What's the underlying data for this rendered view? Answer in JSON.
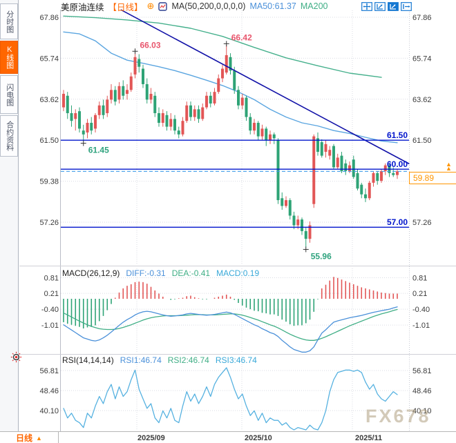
{
  "window": {
    "watermark": "FX678"
  },
  "sidebar": {
    "items": [
      {
        "name": "timeline",
        "label": "分时图",
        "active": false
      },
      {
        "name": "kline",
        "label": "K线图",
        "active": true
      },
      {
        "name": "lightning",
        "label": "闪电图",
        "active": false
      },
      {
        "name": "contract-info",
        "label": "合约资料",
        "active": false
      }
    ]
  },
  "header": {
    "symbol": "美原油连续",
    "period_tag": "【日线】",
    "circle_plus": "⊕",
    "ma_settings": "MA(50,200,0,0,0,0)",
    "ma50_label": "MA50:61.37",
    "ma200_label": "MA200"
  },
  "toolbar": {
    "icons": [
      {
        "name": "pan-tool-icon"
      },
      {
        "name": "axis-zoom-icon"
      },
      {
        "name": "axis-scale-icon"
      },
      {
        "name": "exit-chart-icon"
      }
    ]
  },
  "bottom": {
    "tab_label": "日线",
    "tab_arrow": "▲",
    "x_labels": [
      "2025/09",
      "2025/10",
      "2025/11"
    ]
  },
  "colors": {
    "up": "#e25656",
    "down": "#2ea376",
    "ma50": "#5aa5e0",
    "ma200": "#45b08c",
    "trend": "#1212a8",
    "hline": "#0014cc",
    "dashed": "#3d9be9",
    "orange": "#ff9500",
    "accent_orange": "#ff6600",
    "annotation_red": "#e8566d",
    "annotation_green": "#2fa37e",
    "diff": "#4a90d9",
    "dea": "#3fae85",
    "macd_text": "#38a8d8",
    "rsi_line": "#55b1e0",
    "icon_blue": "#1678d2"
  },
  "chart_data": [
    {
      "type": "candlestick",
      "symbol": "美原油连续",
      "period": "日线",
      "y_axis_labels": [
        "67.86",
        "65.74",
        "63.62",
        "61.50",
        "59.38",
        "57.26"
      ],
      "y_axis_values": [
        67.86,
        65.74,
        63.62,
        61.5,
        59.38,
        57.26
      ],
      "x_axis_labels": [
        "2025/09",
        "2025/10",
        "2025/11"
      ],
      "candles": [
        [
          63.2,
          64.1,
          63.0,
          63.9
        ],
        [
          63.8,
          64.0,
          62.6,
          62.9
        ],
        [
          62.9,
          63.3,
          62.2,
          62.5
        ],
        [
          62.6,
          63.1,
          62.0,
          62.9
        ],
        [
          63.0,
          63.2,
          61.9,
          62.1
        ],
        [
          62.0,
          62.3,
          61.45,
          61.8
        ],
        [
          61.9,
          62.6,
          61.6,
          62.4
        ],
        [
          62.4,
          62.7,
          61.8,
          62.0
        ],
        [
          62.1,
          62.9,
          61.9,
          62.8
        ],
        [
          62.8,
          63.5,
          62.6,
          63.3
        ],
        [
          63.3,
          63.6,
          62.6,
          62.8
        ],
        [
          62.9,
          63.8,
          62.7,
          63.6
        ],
        [
          63.6,
          64.4,
          63.4,
          64.1
        ],
        [
          64.1,
          64.3,
          63.3,
          63.5
        ],
        [
          63.6,
          64.5,
          63.4,
          64.3
        ],
        [
          64.3,
          64.6,
          63.6,
          63.8
        ],
        [
          63.9,
          64.4,
          63.6,
          64.1
        ],
        [
          64.1,
          65.0,
          64.0,
          64.8
        ],
        [
          64.9,
          66.03,
          64.7,
          65.8
        ],
        [
          65.7,
          65.95,
          65.0,
          65.3
        ],
        [
          65.2,
          65.4,
          64.2,
          64.4
        ],
        [
          64.4,
          64.7,
          63.4,
          63.6
        ],
        [
          63.6,
          64.2,
          63.4,
          63.9
        ],
        [
          63.8,
          64.0,
          62.7,
          62.9
        ],
        [
          62.9,
          63.2,
          62.2,
          62.4
        ],
        [
          62.4,
          63.1,
          62.2,
          62.9
        ],
        [
          62.8,
          63.0,
          62.0,
          62.2
        ],
        [
          62.2,
          62.9,
          62.0,
          62.6
        ],
        [
          62.6,
          62.8,
          61.8,
          62.0
        ],
        [
          62.0,
          62.2,
          61.6,
          61.8
        ],
        [
          61.8,
          62.7,
          61.7,
          62.5
        ],
        [
          62.5,
          63.5,
          62.4,
          63.3
        ],
        [
          63.3,
          63.5,
          62.5,
          62.7
        ],
        [
          62.7,
          63.3,
          62.5,
          63.1
        ],
        [
          63.1,
          63.3,
          62.4,
          62.6
        ],
        [
          62.6,
          63.4,
          62.5,
          63.2
        ],
        [
          63.2,
          64.0,
          63.1,
          63.8
        ],
        [
          63.8,
          64.0,
          63.2,
          63.4
        ],
        [
          63.4,
          64.2,
          63.3,
          64.0
        ],
        [
          64.0,
          64.9,
          63.9,
          64.7
        ],
        [
          64.7,
          65.4,
          64.5,
          65.2
        ],
        [
          65.0,
          66.42,
          64.9,
          65.9
        ],
        [
          65.8,
          66.0,
          64.9,
          65.1
        ],
        [
          65.1,
          65.3,
          63.9,
          64.1
        ],
        [
          64.1,
          64.3,
          63.1,
          63.3
        ],
        [
          63.3,
          63.9,
          63.1,
          63.7
        ],
        [
          63.7,
          63.8,
          62.5,
          62.7
        ],
        [
          62.7,
          62.9,
          61.8,
          62.0
        ],
        [
          62.0,
          62.6,
          61.8,
          62.4
        ],
        [
          62.4,
          62.5,
          61.5,
          61.7
        ],
        [
          61.7,
          62.3,
          61.5,
          62.1
        ],
        [
          62.1,
          62.2,
          61.2,
          61.5
        ],
        [
          61.5,
          62.0,
          61.3,
          61.8
        ],
        [
          61.8,
          61.9,
          61.3,
          61.6
        ],
        [
          61.5,
          61.6,
          58.2,
          58.4
        ],
        [
          58.5,
          58.8,
          57.9,
          58.1
        ],
        [
          58.1,
          58.6,
          58.0,
          58.4
        ],
        [
          58.4,
          58.5,
          57.4,
          57.6
        ],
        [
          57.6,
          57.8,
          56.9,
          57.1
        ],
        [
          57.1,
          57.6,
          56.9,
          57.4
        ],
        [
          57.4,
          57.5,
          56.6,
          56.8
        ],
        [
          56.8,
          57.0,
          55.96,
          56.4
        ],
        [
          56.4,
          57.3,
          56.2,
          57.1
        ],
        [
          58.2,
          61.8,
          58.0,
          61.7
        ],
        [
          61.6,
          61.9,
          60.7,
          60.9
        ],
        [
          61.4,
          61.55,
          60.6,
          60.7
        ],
        [
          60.9,
          61.5,
          60.6,
          61.3
        ],
        [
          60.7,
          61.2,
          60.5,
          61.0
        ],
        [
          61.2,
          61.3,
          60.0,
          60.1
        ],
        [
          60.1,
          60.8,
          60.0,
          60.6
        ],
        [
          60.7,
          60.9,
          59.8,
          59.9
        ],
        [
          60.3,
          60.5,
          59.7,
          59.9
        ],
        [
          59.9,
          60.4,
          59.8,
          60.2
        ],
        [
          60.5,
          60.7,
          59.5,
          59.6
        ],
        [
          59.8,
          60.0,
          58.9,
          59.0
        ],
        [
          59.2,
          59.3,
          58.5,
          58.7
        ],
        [
          58.7,
          59.0,
          58.3,
          58.5
        ],
        [
          58.5,
          59.4,
          58.4,
          59.3
        ],
        [
          59.3,
          59.9,
          59.1,
          59.8
        ],
        [
          59.8,
          59.9,
          59.2,
          59.4
        ],
        [
          59.4,
          60.0,
          59.3,
          59.9
        ],
        [
          59.9,
          60.3,
          59.7,
          60.2
        ],
        [
          60.2,
          60.3,
          59.6,
          59.8
        ],
        [
          59.8,
          60.1,
          59.6,
          59.7
        ],
        [
          59.7,
          60.0,
          59.5,
          59.89
        ]
      ],
      "ma50_points": [
        [
          0,
          67.1
        ],
        [
          4,
          67.0
        ],
        [
          8,
          66.64
        ],
        [
          12,
          66.0
        ],
        [
          16,
          65.64
        ],
        [
          20,
          65.48
        ],
        [
          24,
          65.3
        ],
        [
          28,
          65.1
        ],
        [
          32,
          64.86
        ],
        [
          36,
          64.6
        ],
        [
          40,
          64.33
        ],
        [
          44,
          64.0
        ],
        [
          48,
          63.6
        ],
        [
          52,
          63.1
        ],
        [
          56,
          62.7
        ],
        [
          60,
          62.4
        ],
        [
          64,
          62.24
        ],
        [
          68,
          62.0
        ],
        [
          72,
          61.85
        ],
        [
          76,
          61.65
        ],
        [
          80,
          61.46
        ],
        [
          84,
          61.37
        ]
      ],
      "ma200_points": [
        [
          0,
          67.92
        ],
        [
          8,
          67.84
        ],
        [
          16,
          67.72
        ],
        [
          24,
          67.56
        ],
        [
          32,
          67.29
        ],
        [
          40,
          66.87
        ],
        [
          48,
          66.3
        ],
        [
          56,
          65.76
        ],
        [
          64,
          65.35
        ],
        [
          72,
          64.97
        ],
        [
          80,
          64.75
        ]
      ],
      "trendline": {
        "from": [
          14.4,
          68.25
        ],
        "to": [
          87,
          60.28
        ]
      },
      "h_lines": [
        {
          "price": 61.5,
          "label": "61.50"
        },
        {
          "price": 60.0,
          "label": "60.00"
        },
        {
          "price": 57.0,
          "label": "57.00"
        }
      ],
      "current_price": {
        "label": "59.89",
        "value": 59.89
      },
      "annotations": [
        {
          "text": "66.03",
          "index": 18,
          "price": 66.03,
          "type": "high"
        },
        {
          "text": "66.42",
          "index": 41,
          "price": 66.42,
          "type": "high"
        },
        {
          "text": "61.45",
          "index": 5,
          "price": 61.45,
          "type": "low"
        },
        {
          "text": "55.96",
          "index": 61,
          "price": 55.96,
          "type": "low"
        }
      ]
    },
    {
      "type": "macd",
      "label": "MACD(26,12,9)",
      "diff_label": "DIFF:-0.31",
      "dea_label": "DEA:-0.41",
      "macd_label": "MACD:0.19",
      "y_axis_labels": [
        "0.81",
        "0.21",
        "-0.40",
        "-1.01"
      ],
      "y_axis_values": [
        0.81,
        0.21,
        -0.4,
        -1.01
      ],
      "diff": [
        -1.0,
        -1.1,
        -1.2,
        -1.3,
        -1.4,
        -1.5,
        -1.55,
        -1.6,
        -1.62,
        -1.58,
        -1.5,
        -1.4,
        -1.28,
        -1.15,
        -1.02,
        -0.9,
        -0.8,
        -0.72,
        -0.62,
        -0.55,
        -0.5,
        -0.48,
        -0.5,
        -0.54,
        -0.58,
        -0.62,
        -0.65,
        -0.67,
        -0.66,
        -0.64,
        -0.62,
        -0.58,
        -0.56,
        -0.58,
        -0.6,
        -0.62,
        -0.63,
        -0.62,
        -0.6,
        -0.57,
        -0.54,
        -0.51,
        -0.54,
        -0.6,
        -0.68,
        -0.76,
        -0.84,
        -0.92,
        -1.0,
        -1.06,
        -1.15,
        -1.22,
        -1.3,
        -1.35,
        -1.45,
        -1.6,
        -1.72,
        -1.85,
        -1.95,
        -2.0,
        -2.05,
        -2.05,
        -2.0,
        -1.85,
        -1.58,
        -1.32,
        -1.19,
        -1.04,
        -0.9,
        -0.85,
        -0.81,
        -0.77,
        -0.73,
        -0.7,
        -0.67,
        -0.64,
        -0.6,
        -0.56,
        -0.52,
        -0.49,
        -0.46,
        -0.43,
        -0.4,
        -0.35,
        -0.31
      ],
      "dea": [
        -0.55,
        -0.62,
        -0.7,
        -0.78,
        -0.86,
        -0.93,
        -1.0,
        -1.06,
        -1.11,
        -1.15,
        -1.17,
        -1.18,
        -1.18,
        -1.17,
        -1.14,
        -1.1,
        -1.05,
        -1.0,
        -0.94,
        -0.88,
        -0.82,
        -0.77,
        -0.73,
        -0.7,
        -0.68,
        -0.66,
        -0.65,
        -0.65,
        -0.65,
        -0.65,
        -0.64,
        -0.63,
        -0.62,
        -0.61,
        -0.61,
        -0.61,
        -0.62,
        -0.62,
        -0.62,
        -0.61,
        -0.6,
        -0.59,
        -0.58,
        -0.58,
        -0.6,
        -0.63,
        -0.67,
        -0.72,
        -0.77,
        -0.82,
        -0.88,
        -0.94,
        -1.0,
        -1.05,
        -1.12,
        -1.2,
        -1.28,
        -1.36,
        -1.43,
        -1.49,
        -1.54,
        -1.58,
        -1.6,
        -1.6,
        -1.57,
        -1.52,
        -1.46,
        -1.39,
        -1.32,
        -1.25,
        -1.18,
        -1.11,
        -1.04,
        -0.98,
        -0.92,
        -0.86,
        -0.8,
        -0.74,
        -0.68,
        -0.63,
        -0.58,
        -0.54,
        -0.5,
        -0.45,
        -0.41
      ]
    },
    {
      "type": "line",
      "label": "RSI(14,14,14)",
      "rsi1_label": "RSI1:46.74",
      "rsi2_label": "RSI2:46.74",
      "rsi3_label": "RSI3:46.74",
      "y_axis_labels": [
        "56.81",
        "48.46",
        "40.10"
      ],
      "y_axis_values": [
        56.81,
        48.46,
        40.1
      ],
      "values": [
        41,
        37,
        39,
        36,
        35,
        33,
        39,
        37,
        42,
        46,
        43,
        48,
        51,
        45,
        50,
        46,
        48,
        53,
        57,
        49,
        45,
        41,
        43,
        37,
        35,
        40,
        37,
        41,
        36,
        35,
        42,
        48,
        44,
        47,
        43,
        46,
        50,
        46,
        51,
        54,
        56,
        58,
        54,
        49,
        45,
        47,
        42,
        38,
        40,
        36,
        39,
        35,
        37,
        36,
        36,
        34,
        35,
        33,
        32,
        33,
        32.5,
        32,
        34,
        32.5,
        32,
        35,
        40,
        48,
        53,
        56,
        56.5,
        57,
        57,
        56.5,
        57,
        56,
        52,
        49,
        51,
        47,
        45,
        44,
        46,
        48,
        46.74
      ]
    }
  ]
}
